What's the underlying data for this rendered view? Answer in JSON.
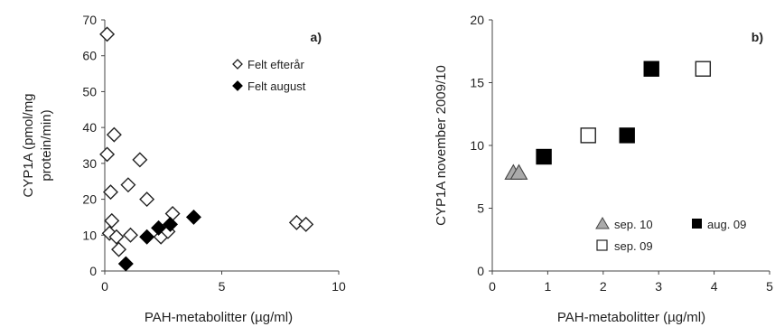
{
  "chart_data": [
    {
      "type": "scatter",
      "panel_label": "a)",
      "xlabel": "PAH-metabolitter (µg/ml)",
      "ylabel": "CYP1A (pmol/mg protein/min)",
      "ylabel_lines": [
        "CYP1A (pmol/mg",
        "protein/min)"
      ],
      "xlim": [
        0,
        10
      ],
      "ylim": [
        0,
        70
      ],
      "x_ticks": [
        "0",
        "5",
        "10"
      ],
      "y_ticks": [
        "0",
        "10",
        "20",
        "30",
        "40",
        "50",
        "60",
        "70"
      ],
      "legend_position": "top-right",
      "series": [
        {
          "name": "Felt efterår",
          "marker": "diamond-open",
          "points": [
            [
              0.1,
              66
            ],
            [
              0.4,
              38
            ],
            [
              0.1,
              32.5
            ],
            [
              0.25,
              22
            ],
            [
              0.3,
              14
            ],
            [
              0.2,
              10.5
            ],
            [
              0.5,
              9.5
            ],
            [
              0.6,
              6
            ],
            [
              1.0,
              24
            ],
            [
              1.1,
              10
            ],
            [
              1.5,
              31
            ],
            [
              1.8,
              20
            ],
            [
              2.4,
              9.5
            ],
            [
              2.7,
              11
            ],
            [
              2.9,
              16
            ],
            [
              8.2,
              13.5
            ],
            [
              8.6,
              13
            ]
          ]
        },
        {
          "name": "Felt august",
          "marker": "diamond-filled",
          "points": [
            [
              0.9,
              2
            ],
            [
              1.8,
              9.5
            ],
            [
              2.3,
              12
            ],
            [
              2.8,
              13
            ],
            [
              3.8,
              15
            ]
          ]
        }
      ]
    },
    {
      "type": "scatter",
      "panel_label": "b)",
      "xlabel": "PAH-metabolitter (µg/ml)",
      "ylabel": "CYP1A november 2009/10",
      "xlim": [
        0,
        5
      ],
      "ylim": [
        0,
        20
      ],
      "x_ticks": [
        "0",
        "1",
        "2",
        "3",
        "4",
        "5"
      ],
      "y_ticks": [
        "0",
        "5",
        "10",
        "15",
        "20"
      ],
      "legend_position": "bottom-right",
      "series": [
        {
          "name": "sep. 10",
          "marker": "triangle-gray",
          "points": [
            [
              0.38,
              7.8
            ],
            [
              0.48,
              7.8
            ]
          ]
        },
        {
          "name": "aug. 09",
          "marker": "square-filled",
          "points": [
            [
              0.93,
              9.1
            ],
            [
              2.43,
              10.8
            ],
            [
              2.87,
              16.1
            ]
          ]
        },
        {
          "name": "sep. 09",
          "marker": "square-open",
          "points": [
            [
              1.73,
              10.8
            ],
            [
              3.8,
              16.1
            ]
          ]
        }
      ]
    }
  ]
}
